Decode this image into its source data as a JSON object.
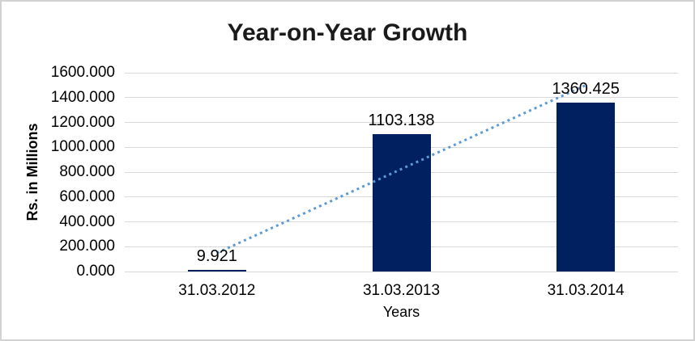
{
  "chart_data": {
    "type": "bar",
    "title": "Year-on-Year Growth",
    "xlabel": "Years",
    "ylabel": "Rs. in Millions",
    "categories": [
      "31.03.2012",
      "31.03.2013",
      "31.03.2014"
    ],
    "series": [
      {
        "name": "Rs. in Millions",
        "values": [
          9.921,
          1103.138,
          1360.425
        ]
      }
    ],
    "data_labels": [
      "9.921",
      "1103.138",
      "1360.425"
    ],
    "ylim": [
      0,
      1600
    ],
    "ytick_step": 200,
    "ytick_labels": [
      "0.000",
      "200.000",
      "400.000",
      "600.000",
      "800.000",
      "1000.000",
      "1200.000",
      "1400.000",
      "1600.000"
    ],
    "grid": true,
    "legend": "none",
    "colors": {
      "bar": "#002060",
      "trendline": "#5b9bd5",
      "gridline": "#d9d9d9",
      "text": "#000000",
      "frame_border": "#d2d2d2"
    },
    "trendline": {
      "type": "linear",
      "style": "dotted"
    }
  }
}
